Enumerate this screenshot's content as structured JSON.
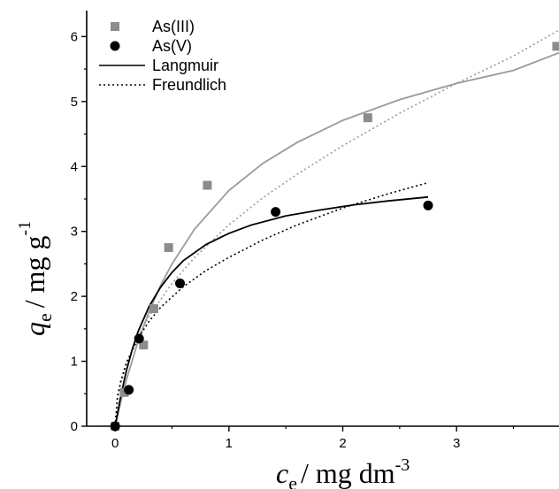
{
  "chart_data": {
    "type": "scatter",
    "xlabel": {
      "symbol": "c",
      "subscript": "e",
      "units": "/ mg dm",
      "superscript": "-3"
    },
    "ylabel": {
      "symbol": "q",
      "subscript": "e",
      "units": "/ mg g",
      "superscript": "-1"
    },
    "xlim": [
      -0.25,
      3.9
    ],
    "ylim": [
      0,
      6.4
    ],
    "xticks": [
      0,
      1,
      2,
      3
    ],
    "yticks": [
      0,
      1,
      2,
      3,
      4,
      5,
      6
    ],
    "grid": false,
    "legend_position": "top-left",
    "series": [
      {
        "name": "As(III)",
        "kind": "scatter",
        "marker": "square",
        "color": "#8c8c8c",
        "x": [
          0.0,
          0.08,
          0.25,
          0.34,
          0.47,
          0.81,
          2.22,
          3.88
        ],
        "y": [
          0.0,
          0.52,
          1.25,
          1.81,
          2.75,
          3.71,
          4.75,
          5.85
        ]
      },
      {
        "name": "As(V)",
        "kind": "scatter",
        "marker": "circle",
        "color": "#000000",
        "x": [
          0.0,
          0.12,
          0.21,
          0.57,
          1.41,
          2.75
        ],
        "y": [
          0.0,
          0.56,
          1.35,
          2.2,
          3.3,
          3.4
        ]
      },
      {
        "name": "Langmuir",
        "kind": "line",
        "style": "solid",
        "color": "#000000"
      },
      {
        "name": "Freundlich",
        "kind": "line",
        "style": "dotted",
        "color": "#000000"
      }
    ],
    "fits": [
      {
        "model": "Langmuir",
        "applies_to": "As(III)",
        "color": "#9a9a9a",
        "style": "solid",
        "x": [
          0.0,
          0.05,
          0.1,
          0.2,
          0.3,
          0.4,
          0.5,
          0.7,
          1.0,
          1.3,
          1.6,
          2.0,
          2.5,
          3.0,
          3.5,
          3.9
        ],
        "y": [
          0.0,
          0.38,
          0.72,
          1.3,
          1.77,
          2.17,
          2.5,
          3.04,
          3.63,
          4.05,
          4.37,
          4.71,
          5.03,
          5.28,
          5.48,
          5.75
        ]
      },
      {
        "model": "Freundlich",
        "applies_to": "As(III)",
        "color": "#9a9a9a",
        "style": "dotted",
        "x": [
          0.0,
          0.02,
          0.05,
          0.1,
          0.2,
          0.3,
          0.5,
          0.7,
          1.0,
          1.3,
          1.6,
          2.0,
          2.5,
          3.0,
          3.5,
          3.9
        ],
        "y": [
          0.0,
          0.4,
          0.65,
          0.95,
          1.38,
          1.7,
          2.2,
          2.6,
          3.1,
          3.52,
          3.88,
          4.32,
          4.82,
          5.28,
          5.7,
          6.1
        ]
      },
      {
        "model": "Langmuir",
        "applies_to": "As(V)",
        "color": "#000000",
        "style": "solid",
        "x": [
          0.0,
          0.05,
          0.1,
          0.15,
          0.2,
          0.3,
          0.4,
          0.5,
          0.6,
          0.8,
          1.0,
          1.2,
          1.5,
          1.8,
          2.1,
          2.4,
          2.75
        ],
        "y": [
          0.0,
          0.47,
          0.86,
          1.18,
          1.45,
          1.85,
          2.14,
          2.37,
          2.55,
          2.8,
          2.97,
          3.1,
          3.24,
          3.33,
          3.41,
          3.47,
          3.53
        ]
      },
      {
        "model": "Freundlich",
        "applies_to": "As(V)",
        "color": "#000000",
        "style": "dotted",
        "x": [
          0.0,
          0.02,
          0.05,
          0.1,
          0.2,
          0.3,
          0.4,
          0.6,
          0.8,
          1.0,
          1.3,
          1.6,
          2.0,
          2.4,
          2.75
        ],
        "y": [
          0.0,
          0.45,
          0.7,
          0.98,
          1.35,
          1.62,
          1.83,
          2.15,
          2.4,
          2.6,
          2.87,
          3.1,
          3.36,
          3.58,
          3.75
        ]
      }
    ]
  }
}
